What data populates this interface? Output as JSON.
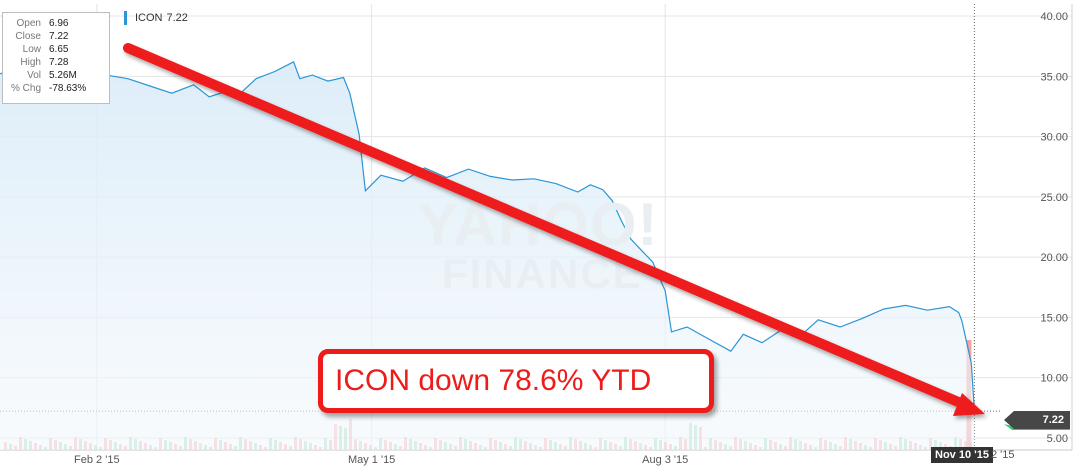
{
  "chart_data": {
    "type": "line",
    "ticker": "ICON",
    "legend": {
      "symbol": "ICON",
      "value": "7.22"
    },
    "ohlc": [
      {
        "label": "Open",
        "value": "6.96"
      },
      {
        "label": "Close",
        "value": "7.22"
      },
      {
        "label": "Low",
        "value": "6.65"
      },
      {
        "label": "High",
        "value": "7.28"
      },
      {
        "label": "Vol",
        "value": "5.26M"
      },
      {
        "label": "% Chg",
        "value": "-78.63%"
      }
    ],
    "y_ticks": [
      {
        "value": 40,
        "label": "40.00"
      },
      {
        "value": 35,
        "label": "35.00"
      },
      {
        "value": 30,
        "label": "30.00"
      },
      {
        "value": 25,
        "label": "25.00"
      },
      {
        "value": 20,
        "label": "20.00"
      },
      {
        "value": 15,
        "label": "15.00"
      },
      {
        "value": 10,
        "label": "10.00"
      },
      {
        "value": 5,
        "label": "5.00"
      }
    ],
    "x_ticks": [
      {
        "date": "2015-02-02",
        "label": "Feb 2 '15"
      },
      {
        "date": "2015-05-01",
        "label": "May 1 '15"
      },
      {
        "date": "2015-08-03",
        "label": "Aug 3 '15"
      }
    ],
    "ylim": [
      4,
      41
    ],
    "xlim": [
      "2015-01-02",
      "2015-11-15"
    ],
    "series": [
      {
        "color": "#2b95d6",
        "points": [
          [
            "2015-01-02",
            35.2
          ],
          [
            "2015-01-08",
            35.8
          ],
          [
            "2015-01-15",
            35.4
          ],
          [
            "2015-01-22",
            35.9
          ],
          [
            "2015-01-29",
            35.6
          ],
          [
            "2015-02-05",
            35.1
          ],
          [
            "2015-02-12",
            34.8
          ],
          [
            "2015-02-19",
            34.2
          ],
          [
            "2015-02-26",
            33.6
          ],
          [
            "2015-03-05",
            34.3
          ],
          [
            "2015-03-10",
            33.3
          ],
          [
            "2015-03-16",
            33.8
          ],
          [
            "2015-03-20",
            33.6
          ],
          [
            "2015-03-25",
            34.8
          ],
          [
            "2015-03-31",
            35.4
          ],
          [
            "2015-04-03",
            35.8
          ],
          [
            "2015-04-06",
            36.2
          ],
          [
            "2015-04-08",
            34.8
          ],
          [
            "2015-04-12",
            35.1
          ],
          [
            "2015-04-17",
            34.6
          ],
          [
            "2015-04-22",
            34.9
          ],
          [
            "2015-04-24",
            33.6
          ],
          [
            "2015-04-27",
            30.2
          ],
          [
            "2015-04-29",
            25.5
          ],
          [
            "2015-05-04",
            26.8
          ],
          [
            "2015-05-11",
            26.3
          ],
          [
            "2015-05-18",
            27.4
          ],
          [
            "2015-05-25",
            26.6
          ],
          [
            "2015-06-01",
            27.3
          ],
          [
            "2015-06-08",
            26.7
          ],
          [
            "2015-06-15",
            26.4
          ],
          [
            "2015-06-22",
            26.5
          ],
          [
            "2015-06-29",
            26.1
          ],
          [
            "2015-07-06",
            25.4
          ],
          [
            "2015-07-10",
            26.0
          ],
          [
            "2015-07-14",
            25.6
          ],
          [
            "2015-07-17",
            24.7
          ],
          [
            "2015-07-20",
            23.0
          ],
          [
            "2015-07-23",
            21.5
          ],
          [
            "2015-07-27",
            20.4
          ],
          [
            "2015-07-30",
            19.6
          ],
          [
            "2015-08-03",
            17.2
          ],
          [
            "2015-08-05",
            13.8
          ],
          [
            "2015-08-10",
            14.2
          ],
          [
            "2015-08-17",
            13.2
          ],
          [
            "2015-08-24",
            12.2
          ],
          [
            "2015-08-28",
            13.6
          ],
          [
            "2015-09-03",
            12.9
          ],
          [
            "2015-09-10",
            14.1
          ],
          [
            "2015-09-15",
            13.4
          ],
          [
            "2015-09-21",
            14.8
          ],
          [
            "2015-09-28",
            14.2
          ],
          [
            "2015-10-05",
            14.9
          ],
          [
            "2015-10-12",
            15.7
          ],
          [
            "2015-10-19",
            16.0
          ],
          [
            "2015-10-26",
            15.6
          ],
          [
            "2015-11-02",
            15.9
          ],
          [
            "2015-11-05",
            15.4
          ],
          [
            "2015-11-06",
            14.7
          ],
          [
            "2015-11-09",
            11.2
          ],
          [
            "2015-11-10",
            7.22
          ]
        ]
      }
    ],
    "current": {
      "date_label": "Nov 10 '15",
      "price_label": "7.22",
      "price": 7.22
    },
    "volume_colors": {
      "up": "#6fcf9a",
      "down": "#f28b8b"
    }
  },
  "watermark": {
    "line1": "YAHOO!",
    "line2": "FINANCE"
  },
  "annotation": {
    "text": "ICON down 78.6% YTD",
    "color": "#ee1b1b"
  },
  "cut_label": "2 '15"
}
